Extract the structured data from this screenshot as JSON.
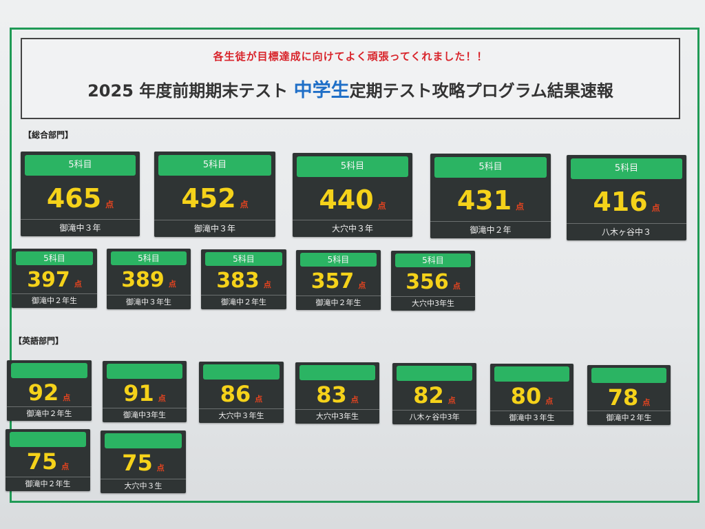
{
  "header": {
    "tagline": "各生徒が目標達成に向けてよく頑張ってくれました！！",
    "title_prefix": "2025 年度前期期末テスト",
    "title_highlight": "中学生",
    "title_suffix": "定期テスト攻略プログラム結果速報"
  },
  "sections": {
    "overall_label": "【総合部門】",
    "english_label": "【英語部門】"
  },
  "overall_top": [
    {
      "subject": "5科目",
      "score": "465",
      "unit": "点",
      "school": "御滝中３年"
    },
    {
      "subject": "5科目",
      "score": "452",
      "unit": "点",
      "school": "御滝中３年"
    },
    {
      "subject": "5科目",
      "score": "440",
      "unit": "点",
      "school": "大穴中３年"
    },
    {
      "subject": "5科目",
      "score": "431",
      "unit": "点",
      "school": "御滝中２年"
    },
    {
      "subject": "5科目",
      "score": "416",
      "unit": "点",
      "school": "八木ヶ谷中３"
    }
  ],
  "overall_second": [
    {
      "subject": "5科目",
      "score": "397",
      "unit": "点",
      "school": "御滝中２年生"
    },
    {
      "subject": "5科目",
      "score": "389",
      "unit": "点",
      "school": "御滝中３年生"
    },
    {
      "subject": "5科目",
      "score": "383",
      "unit": "点",
      "school": "御滝中２年生"
    },
    {
      "subject": "5科目",
      "score": "357",
      "unit": "点",
      "school": "御滝中２年生"
    },
    {
      "subject": "5科目",
      "score": "356",
      "unit": "点",
      "school": "大穴中3年生"
    }
  ],
  "english": [
    {
      "score": "92",
      "unit": "点",
      "school": "御滝中２年生"
    },
    {
      "score": "91",
      "unit": "点",
      "school": "御滝中3年生"
    },
    {
      "score": "86",
      "unit": "点",
      "school": "大穴中３年生"
    },
    {
      "score": "83",
      "unit": "点",
      "school": "大穴中3年生"
    },
    {
      "score": "82",
      "unit": "点",
      "school": "八木ヶ谷中3年"
    },
    {
      "score": "80",
      "unit": "点",
      "school": "御滝中３年生"
    },
    {
      "score": "78",
      "unit": "点",
      "school": "御滝中２年生"
    },
    {
      "score": "75",
      "unit": "点",
      "school": "御滝中２年生"
    },
    {
      "score": "75",
      "unit": "点",
      "school": "大穴中３生"
    }
  ],
  "colors": {
    "frame_green": "#1f9a55",
    "card_bg": "#2f3434",
    "bar_green": "#2bb463",
    "score_yellow": "#f5d21a",
    "unit_red": "#e8441f",
    "title_blue": "#1f6fc7",
    "tagline_red": "#d8232a"
  }
}
